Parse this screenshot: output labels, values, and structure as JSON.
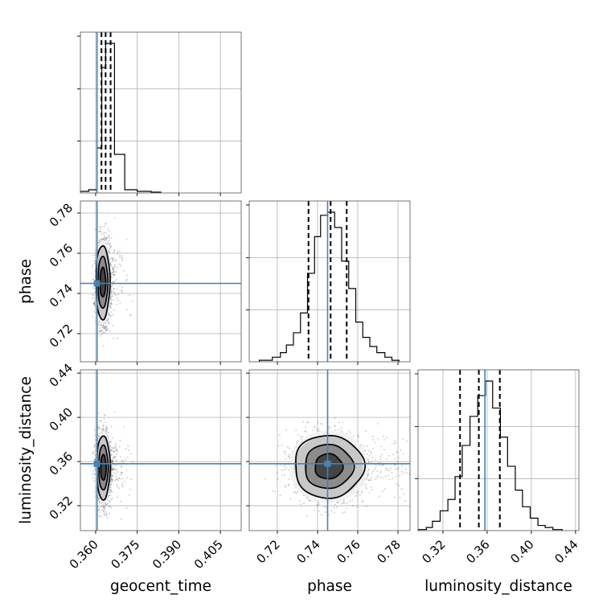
{
  "chart_data": {
    "type": "corner",
    "parameters": [
      "geocent_time",
      "phase",
      "luminosity_distance"
    ],
    "labels": [
      "geocent_time",
      "phase",
      "luminosity_distance"
    ],
    "ranges": {
      "geocent_time": [
        0.3545,
        0.4125
      ],
      "phase": [
        0.706,
        0.786
      ],
      "luminosity_distance": [
        0.2975,
        0.443
      ]
    },
    "ticks": {
      "geocent_time": [
        0.36,
        0.375,
        0.39,
        0.405
      ],
      "phase": [
        0.72,
        0.74,
        0.76,
        0.78
      ],
      "luminosity_distance": [
        0.32,
        0.36,
        0.4,
        0.44
      ]
    },
    "tick_labels": {
      "geocent_time": [
        "0.360",
        "0.375",
        "0.390",
        "0.405"
      ],
      "phase": [
        "0.72",
        "0.74",
        "0.76",
        "0.78"
      ],
      "luminosity_distance": [
        "0.32",
        "0.36",
        "0.40",
        "0.44"
      ]
    },
    "truths": {
      "geocent_time": 0.3605,
      "phase": 0.745,
      "luminosity_distance": 0.358
    },
    "quantiles": {
      "geocent_time": [
        0.3621,
        0.3636,
        0.3654
      ],
      "phase": [
        0.7355,
        0.7465,
        0.7545
      ],
      "luminosity_distance": [
        0.3355,
        0.3525,
        0.3715
      ]
    },
    "histograms": {
      "geocent_time": {
        "edges": [
          0.3545,
          0.3575,
          0.3605,
          0.3622,
          0.3636,
          0.3652,
          0.3668,
          0.3705,
          0.375,
          0.38,
          0.3835
        ],
        "counts": [
          1,
          2,
          28,
          78,
          93,
          93,
          24,
          2,
          1,
          0.5
        ]
      },
      "phase": {
        "edges": [
          0.711,
          0.7175,
          0.7215,
          0.7245,
          0.728,
          0.7315,
          0.735,
          0.7385,
          0.7415,
          0.745,
          0.7485,
          0.752,
          0.7555,
          0.759,
          0.7625,
          0.766,
          0.7695,
          0.7735,
          0.777,
          0.7805
        ],
        "counts": [
          0.5,
          1.5,
          3,
          5.5,
          9.5,
          16,
          29,
          41,
          48,
          49,
          44,
          33,
          24,
          13,
          8,
          5,
          3,
          1.5,
          0.5
        ]
      },
      "luminosity_distance": {
        "edges": [
          0.298,
          0.305,
          0.3105,
          0.3175,
          0.3245,
          0.331,
          0.3375,
          0.3445,
          0.3515,
          0.3585,
          0.365,
          0.372,
          0.3785,
          0.3855,
          0.392,
          0.399,
          0.406,
          0.4125,
          0.4195,
          0.428
        ],
        "counts": [
          0.5,
          1.5,
          4.5,
          9.5,
          15,
          26,
          41,
          55,
          65,
          72,
          59,
          45,
          31,
          19.5,
          11.5,
          6,
          2.5,
          1.5,
          0.5
        ]
      }
    },
    "contours_2d": {
      "phase|geocent_time": {
        "center": [
          0.3626,
          0.7455
        ],
        "sigma": [
          0.00125,
          0.0092
        ],
        "levels": [
          0.8,
          1.4,
          2.0
        ]
      },
      "luminosity_distance|geocent_time": {
        "center": [
          0.3628,
          0.3545
        ],
        "sigma": [
          0.0012,
          0.0145
        ],
        "levels": [
          0.8,
          1.4,
          2.0
        ]
      },
      "luminosity_distance|phase": {
        "center": [
          0.7455,
          0.3555
        ],
        "sigma": [
          0.0086,
          0.0142
        ],
        "levels": [
          0.8,
          1.4,
          2.0
        ]
      }
    },
    "grid": true
  }
}
